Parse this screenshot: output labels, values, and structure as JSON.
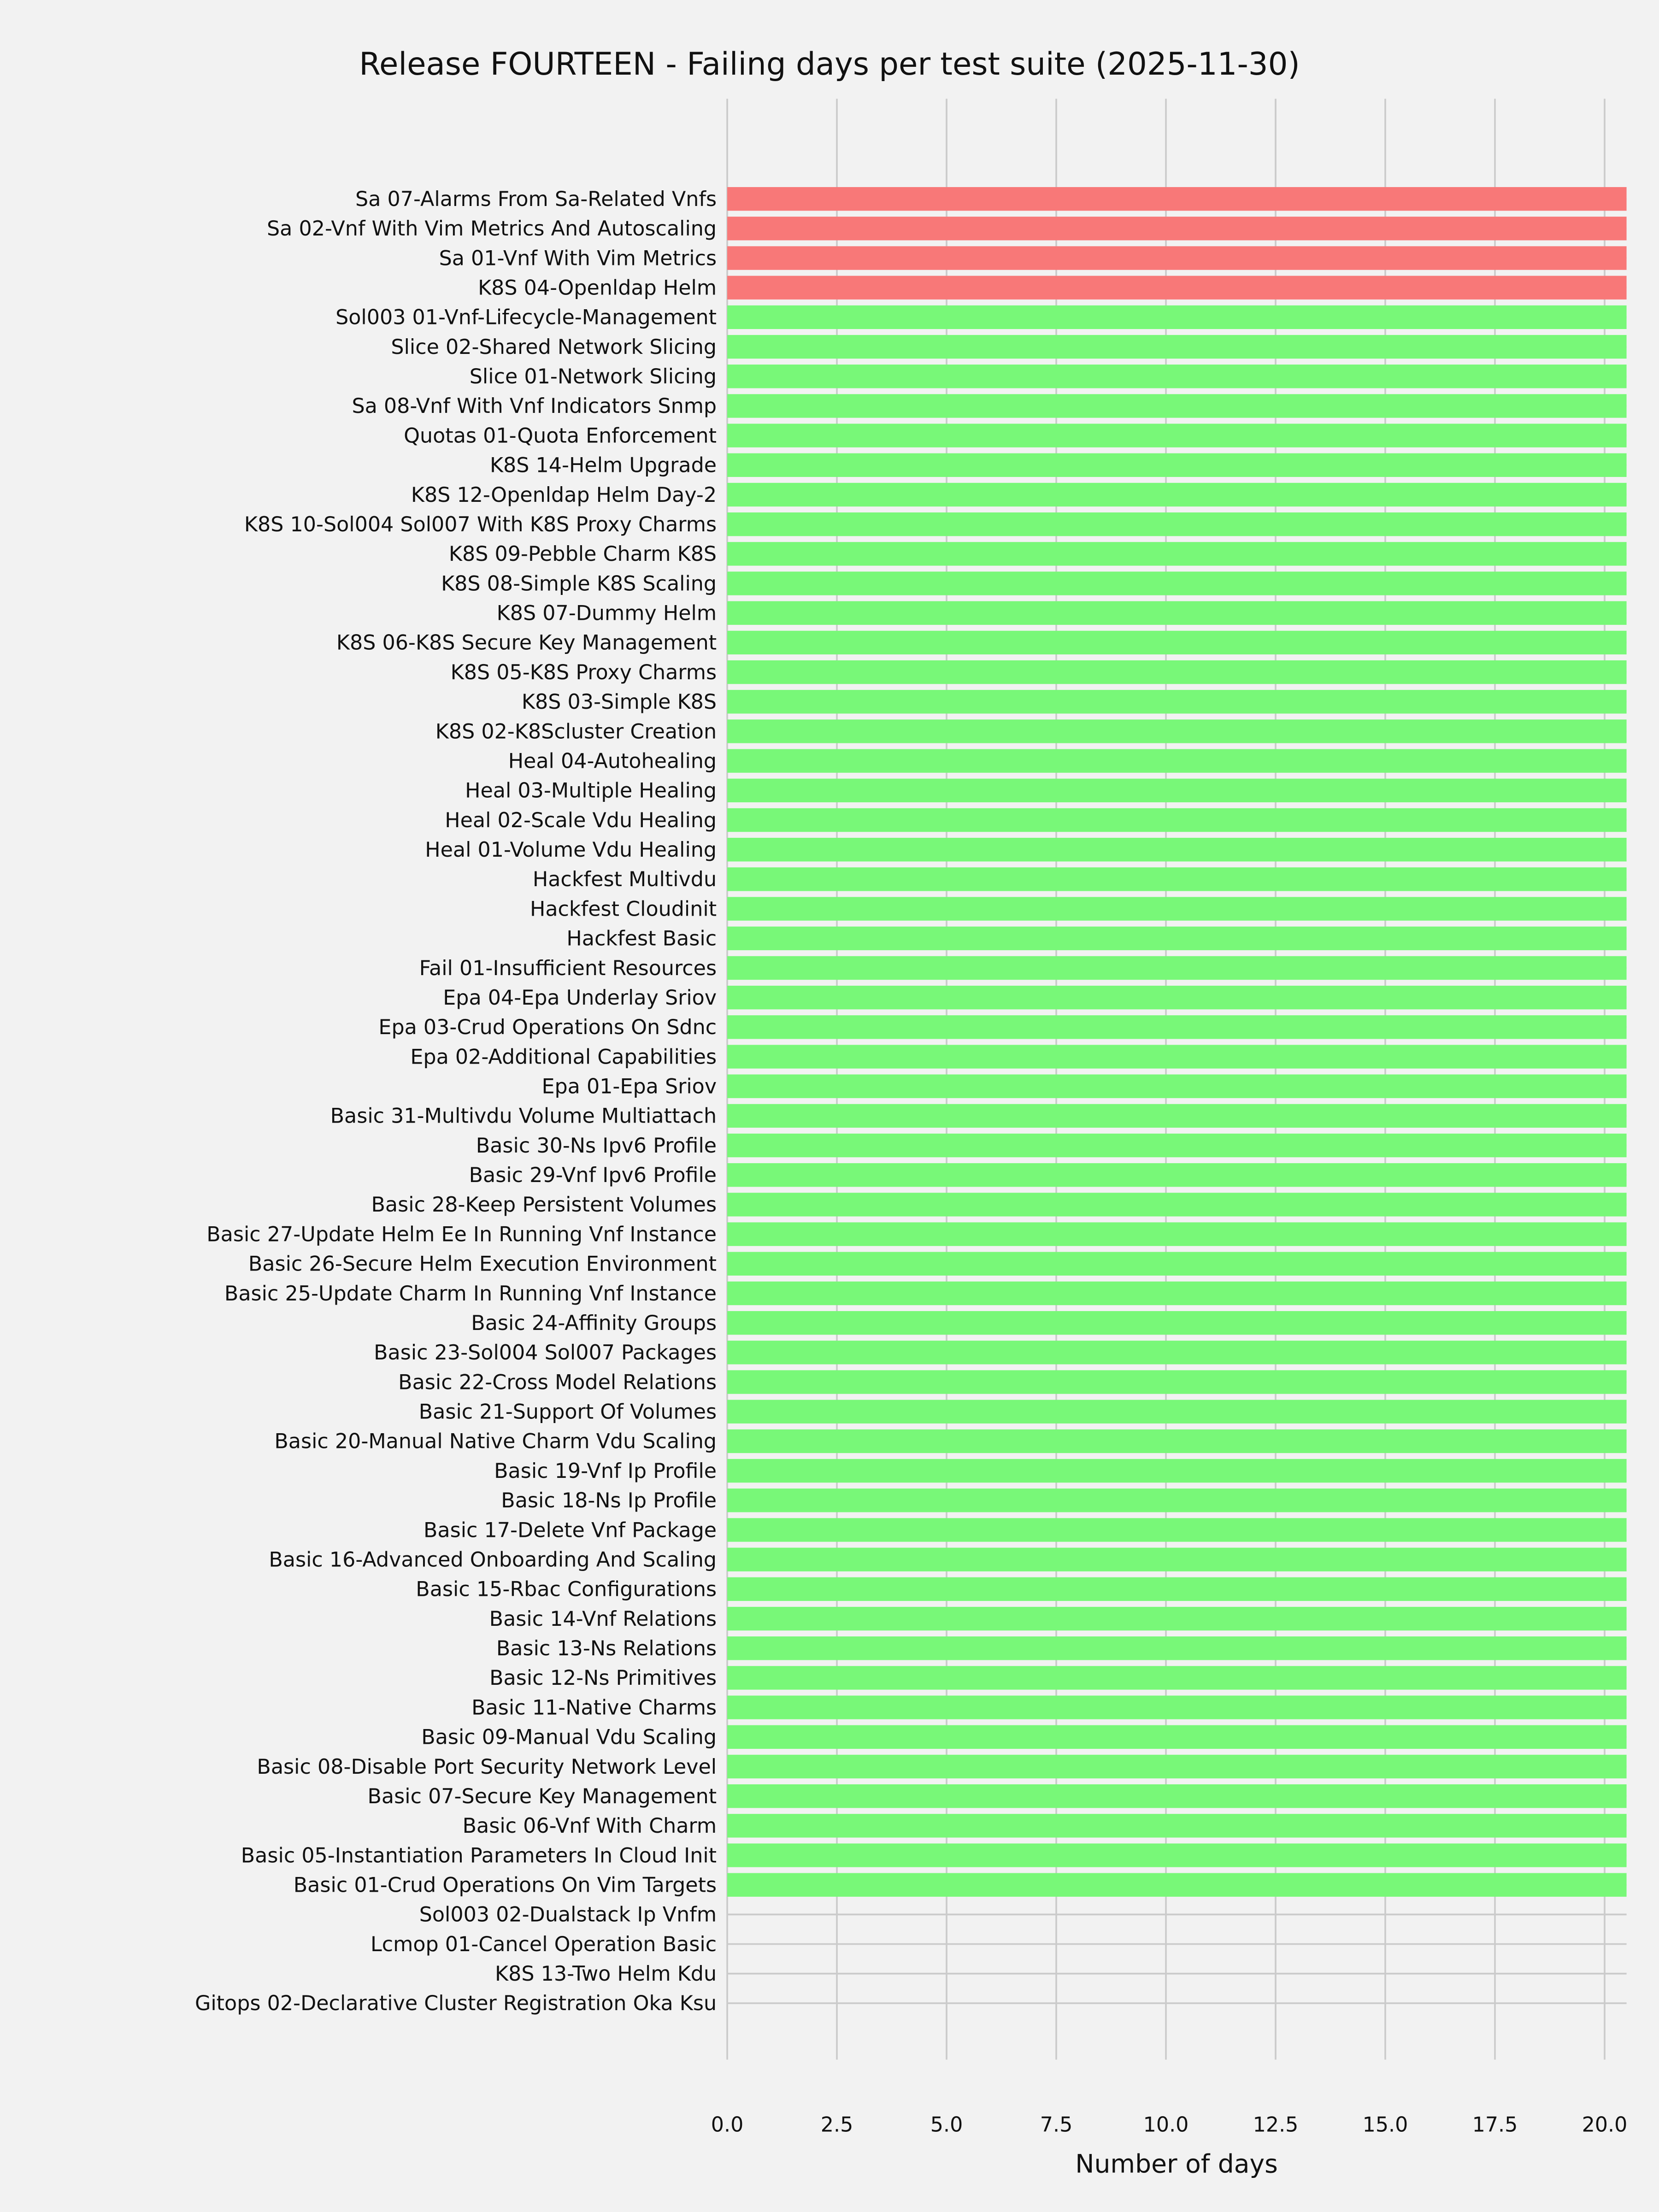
{
  "chart_data": {
    "type": "bar",
    "orientation": "horizontal",
    "title": "Release FOURTEEN - Failing days per test suite (2025-11-30)",
    "xlabel": "Number of days",
    "ylabel": "",
    "xlim": [
      0,
      20.5
    ],
    "xticks": [
      "0.0",
      "2.5",
      "5.0",
      "7.5",
      "10.0",
      "12.5",
      "15.0",
      "17.5",
      "20.0"
    ],
    "grid": true,
    "colors": {
      "failing": "#f87878",
      "passing": "#78f878",
      "background": "#f2f2f2",
      "grid": "#cbcbcb"
    },
    "categories": [
      "Sa 07-Alarms From Sa-Related Vnfs",
      "Sa 02-Vnf With Vim Metrics And Autoscaling",
      "Sa 01-Vnf With Vim Metrics",
      "K8S 04-Openldap Helm",
      "Sol003 01-Vnf-Lifecycle-Management",
      "Slice 02-Shared Network Slicing",
      "Slice 01-Network Slicing",
      "Sa 08-Vnf With Vnf Indicators Snmp",
      "Quotas 01-Quota Enforcement",
      "K8S 14-Helm Upgrade",
      "K8S 12-Openldap Helm Day-2",
      "K8S 10-Sol004 Sol007 With K8S Proxy Charms",
      "K8S 09-Pebble Charm K8S",
      "K8S 08-Simple K8S Scaling",
      "K8S 07-Dummy Helm",
      "K8S 06-K8S Secure Key Management",
      "K8S 05-K8S Proxy Charms",
      "K8S 03-Simple K8S",
      "K8S 02-K8Scluster Creation",
      "Heal 04-Autohealing",
      "Heal 03-Multiple Healing",
      "Heal 02-Scale Vdu Healing",
      "Heal 01-Volume Vdu Healing",
      "Hackfest Multivdu",
      "Hackfest Cloudinit",
      "Hackfest Basic",
      "Fail 01-Insufficient Resources",
      "Epa 04-Epa Underlay Sriov",
      "Epa 03-Crud Operations On Sdnc",
      "Epa 02-Additional Capabilities",
      "Epa 01-Epa Sriov",
      "Basic 31-Multivdu Volume Multiattach",
      "Basic 30-Ns Ipv6 Profile",
      "Basic 29-Vnf Ipv6 Profile",
      "Basic 28-Keep Persistent Volumes",
      "Basic 27-Update Helm Ee In Running Vnf Instance",
      "Basic 26-Secure Helm Execution Environment",
      "Basic 25-Update Charm In Running Vnf Instance",
      "Basic 24-Affinity Groups",
      "Basic 23-Sol004 Sol007 Packages",
      "Basic 22-Cross Model Relations",
      "Basic 21-Support Of Volumes",
      "Basic 20-Manual Native Charm Vdu Scaling",
      "Basic 19-Vnf Ip Profile",
      "Basic 18-Ns Ip Profile",
      "Basic 17-Delete Vnf Package",
      "Basic 16-Advanced Onboarding And Scaling",
      "Basic 15-Rbac Configurations",
      "Basic 14-Vnf Relations",
      "Basic 13-Ns Relations",
      "Basic 12-Ns Primitives",
      "Basic 11-Native Charms",
      "Basic 09-Manual Vdu Scaling",
      "Basic 08-Disable Port Security Network Level",
      "Basic 07-Secure Key Management",
      "Basic 06-Vnf With Charm",
      "Basic 05-Instantiation Parameters In Cloud Init",
      "Basic 01-Crud Operations On Vim Targets",
      "Sol003 02-Dualstack Ip Vnfm",
      "Lcmop 01-Cancel Operation Basic",
      "K8S 13-Two Helm Kdu",
      "Gitops 02-Declarative Cluster Registration Oka Ksu"
    ],
    "values": [
      20.5,
      20.5,
      20.5,
      20.5,
      20.5,
      20.5,
      20.5,
      20.5,
      20.5,
      20.5,
      20.5,
      20.5,
      20.5,
      20.5,
      20.5,
      20.5,
      20.5,
      20.5,
      20.5,
      20.5,
      20.5,
      20.5,
      20.5,
      20.5,
      20.5,
      20.5,
      20.5,
      20.5,
      20.5,
      20.5,
      20.5,
      20.5,
      20.5,
      20.5,
      20.5,
      20.5,
      20.5,
      20.5,
      20.5,
      20.5,
      20.5,
      20.5,
      20.5,
      20.5,
      20.5,
      20.5,
      20.5,
      20.5,
      20.5,
      20.5,
      20.5,
      20.5,
      20.5,
      20.5,
      20.5,
      20.5,
      20.5,
      20.5,
      0,
      0,
      0,
      0
    ],
    "status": [
      "failing",
      "failing",
      "failing",
      "failing",
      "passing",
      "passing",
      "passing",
      "passing",
      "passing",
      "passing",
      "passing",
      "passing",
      "passing",
      "passing",
      "passing",
      "passing",
      "passing",
      "passing",
      "passing",
      "passing",
      "passing",
      "passing",
      "passing",
      "passing",
      "passing",
      "passing",
      "passing",
      "passing",
      "passing",
      "passing",
      "passing",
      "passing",
      "passing",
      "passing",
      "passing",
      "passing",
      "passing",
      "passing",
      "passing",
      "passing",
      "passing",
      "passing",
      "passing",
      "passing",
      "passing",
      "passing",
      "passing",
      "passing",
      "passing",
      "passing",
      "passing",
      "passing",
      "passing",
      "passing",
      "passing",
      "passing",
      "passing",
      "passing",
      "none",
      "none",
      "none",
      "none"
    ]
  }
}
